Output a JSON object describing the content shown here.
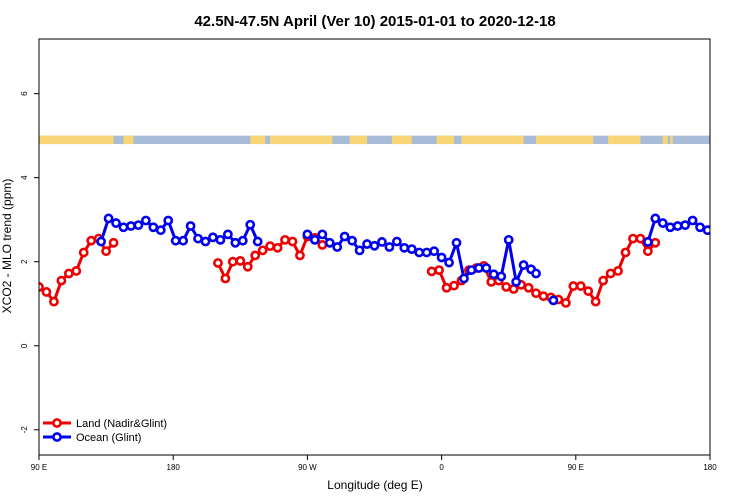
{
  "chart_data": {
    "type": "line",
    "title": "42.5N-47.5N April (Ver 10)   2015-01-01 to 2020-12-18",
    "xlabel": "Longitude (deg E)",
    "ylabel": "XCO2 - MLO trend (ppm)",
    "xlim": [
      -90,
      180
    ],
    "ylim": [
      -2.6,
      7.3
    ],
    "x_ticks": [
      {
        "value": -90,
        "label": "90 E"
      },
      {
        "value": -36,
        "label": "180"
      },
      {
        "value": 18,
        "label": "90 W"
      },
      {
        "value": 72,
        "label": "0"
      },
      {
        "value": 126,
        "label": "90 E"
      },
      {
        "value": 180,
        "label": "180"
      }
    ],
    "y_ticks": [
      -2,
      0,
      2,
      4,
      6
    ],
    "grid": false,
    "legend_position": "bottom-left",
    "land_ocean_bar": {
      "y_range": [
        4.8,
        5.0
      ],
      "land_color": "#f8d677",
      "ocean_color": "#a8bcd8",
      "land_ranges": [
        [
          -90,
          -60
        ],
        [
          -56,
          -54
        ],
        [
          -55,
          -52
        ],
        [
          -5,
          1
        ],
        [
          3,
          28
        ],
        [
          35,
          42
        ],
        [
          52,
          60
        ],
        [
          70,
          77
        ],
        [
          80,
          105
        ],
        [
          110,
          133
        ],
        [
          139,
          152
        ],
        [
          161,
          163
        ],
        [
          164,
          165
        ]
      ]
    },
    "series": [
      {
        "name": "Land (Nadir&Glint)",
        "color": "#ee0000",
        "segments": [
          [
            [
              -90,
              1.4
            ],
            [
              -87,
              1.28
            ],
            [
              -84,
              1.05
            ],
            [
              -81,
              1.55
            ],
            [
              -78,
              1.72
            ],
            [
              -75,
              1.78
            ],
            [
              -72,
              2.22
            ],
            [
              -69,
              2.5
            ],
            [
              -66,
              2.55
            ],
            [
              -63,
              2.25
            ],
            [
              -60,
              2.45
            ]
          ],
          [
            [
              -18,
              1.97
            ],
            [
              -15,
              1.6
            ],
            [
              -12,
              2.0
            ],
            [
              -9,
              2.02
            ],
            [
              -6,
              1.88
            ],
            [
              -3,
              2.15
            ],
            [
              0,
              2.27
            ],
            [
              3,
              2.37
            ],
            [
              6,
              2.33
            ],
            [
              9,
              2.52
            ],
            [
              12,
              2.48
            ],
            [
              15,
              2.15
            ],
            [
              18,
              2.6
            ],
            [
              21,
              2.57
            ],
            [
              24,
              2.4
            ]
          ],
          [
            [
              68,
              1.77
            ],
            [
              71,
              1.8
            ],
            [
              74,
              1.38
            ],
            [
              77,
              1.43
            ],
            [
              80,
              1.55
            ],
            [
              83,
              1.8
            ],
            [
              86,
              1.85
            ],
            [
              89,
              1.9
            ],
            [
              92,
              1.52
            ],
            [
              95,
              1.55
            ],
            [
              98,
              1.4
            ],
            [
              101,
              1.35
            ],
            [
              104,
              1.45
            ],
            [
              107,
              1.38
            ],
            [
              110,
              1.25
            ],
            [
              113,
              1.18
            ],
            [
              116,
              1.15
            ],
            [
              119,
              1.1
            ],
            [
              122,
              1.02
            ],
            [
              125,
              1.42
            ],
            [
              128,
              1.42
            ],
            [
              131,
              1.3
            ],
            [
              134,
              1.05
            ],
            [
              137,
              1.55
            ],
            [
              140,
              1.72
            ],
            [
              143,
              1.78
            ],
            [
              146,
              2.22
            ],
            [
              149,
              2.55
            ],
            [
              152,
              2.55
            ],
            [
              155,
              2.25
            ],
            [
              158,
              2.45
            ]
          ]
        ]
      },
      {
        "name": "Ocean (Glint)",
        "color": "#0000ee",
        "segments": [
          [
            [
              -65,
              2.48
            ],
            [
              -62,
              3.03
            ],
            [
              -59,
              2.92
            ],
            [
              -56,
              2.82
            ],
            [
              -53,
              2.85
            ],
            [
              -50,
              2.87
            ],
            [
              -47,
              2.98
            ],
            [
              -44,
              2.82
            ],
            [
              -41,
              2.75
            ],
            [
              -38,
              2.98
            ],
            [
              -35,
              2.5
            ],
            [
              -32,
              2.5
            ],
            [
              -29,
              2.85
            ],
            [
              -26,
              2.55
            ],
            [
              -23,
              2.48
            ],
            [
              -20,
              2.58
            ],
            [
              -17,
              2.52
            ],
            [
              -14,
              2.65
            ],
            [
              -11,
              2.45
            ],
            [
              -8,
              2.5
            ],
            [
              -5,
              2.88
            ],
            [
              -2,
              2.48
            ]
          ],
          [
            [
              18,
              2.65
            ],
            [
              21,
              2.52
            ],
            [
              24,
              2.65
            ],
            [
              27,
              2.45
            ],
            [
              30,
              2.35
            ],
            [
              33,
              2.6
            ],
            [
              36,
              2.5
            ],
            [
              39,
              2.27
            ],
            [
              42,
              2.42
            ],
            [
              45,
              2.38
            ],
            [
              48,
              2.47
            ],
            [
              51,
              2.35
            ],
            [
              54,
              2.48
            ],
            [
              57,
              2.33
            ],
            [
              60,
              2.3
            ],
            [
              63,
              2.22
            ],
            [
              66,
              2.22
            ],
            [
              69,
              2.25
            ],
            [
              72,
              2.1
            ],
            [
              75,
              1.98
            ],
            [
              78,
              2.45
            ],
            [
              81,
              1.6
            ],
            [
              84,
              1.8
            ],
            [
              87,
              1.85
            ],
            [
              90,
              1.85
            ],
            [
              93,
              1.7
            ],
            [
              96,
              1.65
            ],
            [
              99,
              2.52
            ],
            [
              102,
              1.52
            ],
            [
              105,
              1.92
            ],
            [
              108,
              1.82
            ],
            [
              110,
              1.72
            ]
          ],
          [
            [
              117,
              1.08
            ]
          ],
          [
            [
              155,
              2.47
            ],
            [
              158,
              3.03
            ],
            [
              161,
              2.92
            ],
            [
              164,
              2.82
            ],
            [
              167,
              2.85
            ],
            [
              170,
              2.87
            ],
            [
              173,
              2.98
            ],
            [
              176,
              2.82
            ],
            [
              179,
              2.75
            ],
            [
              182,
              2.98
            ]
          ]
        ]
      }
    ]
  }
}
